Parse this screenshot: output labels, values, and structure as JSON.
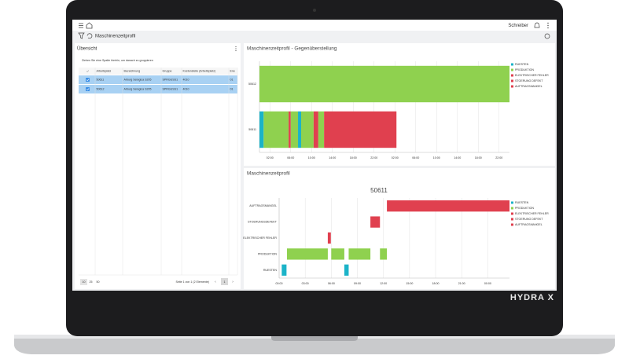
{
  "device": {
    "brand": "HYDRA X"
  },
  "app": {
    "user": "Schreiber",
    "page_title": "Maschinenzeitprofil"
  },
  "overview": {
    "title": "Übersicht",
    "group_hint": "Ziehen Sie eine Spalte hierhin, um danach zu gruppieren",
    "columns": [
      "Arbeitsplatz",
      "Bezeichnung",
      "Gruppe",
      "Kostenstelle (Arbeitsplatz)",
      "Ene"
    ],
    "rows": [
      [
        "50611",
        "Arburg Selogica S205",
        "SPRGUSS1",
        "4010",
        "01"
      ],
      [
        "50612",
        "Arburg Selogica S205",
        "SPRGUSS1",
        "4010",
        "01"
      ]
    ],
    "page_sizes": [
      "10",
      "25",
      "50"
    ],
    "page_info": "Seite 1 von 1 (2 Elemente)",
    "current_page": "1"
  },
  "legend": [
    {
      "name": "RUESTEN",
      "color": "#1bb3c8"
    },
    {
      "name": "PRODUKTION",
      "color": "#8fd14f"
    },
    {
      "name": "ELEKTRISCHER FEHLER",
      "color": "#e0404f"
    },
    {
      "name": "STOERUNG DEFEKT",
      "color": "#e0404f"
    },
    {
      "name": "AUFTRAGSMANGEL",
      "color": "#e0404f"
    }
  ],
  "comparison": {
    "title": "Maschinenzeitprofil - Gegenüberstellung",
    "xlim": [
      0,
      48
    ],
    "xticks": [
      {
        "value": 2,
        "label": "02:00"
      },
      {
        "value": 6,
        "label": "06:00"
      },
      {
        "value": 10,
        "label": "10:00"
      },
      {
        "value": 14,
        "label": "14:00"
      },
      {
        "value": 18,
        "label": "18:00"
      },
      {
        "value": 22,
        "label": "22:00"
      },
      {
        "value": 26,
        "label": "02:00"
      },
      {
        "value": 30,
        "label": "06:00"
      },
      {
        "value": 34,
        "label": "10:00"
      },
      {
        "value": 38,
        "label": "14:00"
      },
      {
        "value": 42,
        "label": "18:00"
      },
      {
        "value": 46,
        "label": "22:00"
      }
    ],
    "rows": [
      {
        "name": "50612",
        "segments": [
          {
            "start": 0,
            "end": 48,
            "color": "#8fd14f"
          }
        ]
      },
      {
        "name": "50611",
        "segments": [
          {
            "start": 0,
            "end": 0.8,
            "color": "#1bb3c8"
          },
          {
            "start": 0.8,
            "end": 5.6,
            "color": "#8fd14f"
          },
          {
            "start": 5.6,
            "end": 6.0,
            "color": "#e0404f"
          },
          {
            "start": 6.0,
            "end": 7.4,
            "color": "#8fd14f"
          },
          {
            "start": 7.4,
            "end": 8.0,
            "color": "#1bb3c8"
          },
          {
            "start": 8.0,
            "end": 10.4,
            "color": "#8fd14f"
          },
          {
            "start": 10.4,
            "end": 11.3,
            "color": "#e0404f"
          },
          {
            "start": 11.3,
            "end": 12.4,
            "color": "#8fd14f"
          },
          {
            "start": 12.4,
            "end": 26.3,
            "color": "#e0404f"
          }
        ]
      }
    ]
  },
  "timeline": {
    "title": "Maschinenzeitprofil",
    "subtitle": "50611",
    "xlim": [
      0,
      26.5
    ],
    "xticks": [
      {
        "value": 0,
        "label": "00:00"
      },
      {
        "value": 3,
        "label": "03:00"
      },
      {
        "value": 6,
        "label": "06:00"
      },
      {
        "value": 9,
        "label": "09:00"
      },
      {
        "value": 12,
        "label": "12:00"
      },
      {
        "value": 15,
        "label": "15:00"
      },
      {
        "value": 18,
        "label": "18:00"
      },
      {
        "value": 21,
        "label": "21:00"
      },
      {
        "value": 24,
        "label": "00:00"
      }
    ],
    "categories": [
      {
        "name": "AUFTRAGSMANGEL",
        "color": "#e0404f",
        "intervals": [
          {
            "start": 12.4,
            "end": 26.5
          }
        ]
      },
      {
        "name": "STOERUNGSDEFEKT",
        "color": "#e0404f",
        "intervals": [
          {
            "start": 10.5,
            "end": 11.6
          }
        ]
      },
      {
        "name": "ELEKTRISCHER FEHLER",
        "color": "#e0404f",
        "intervals": [
          {
            "start": 5.6,
            "end": 5.95
          }
        ]
      },
      {
        "name": "PRODUKTION",
        "color": "#8fd14f",
        "intervals": [
          {
            "start": 0.9,
            "end": 5.6
          },
          {
            "start": 6.0,
            "end": 7.5
          },
          {
            "start": 8.0,
            "end": 10.5
          },
          {
            "start": 11.6,
            "end": 12.4
          }
        ]
      },
      {
        "name": "RUESTEN",
        "color": "#1bb3c8",
        "intervals": [
          {
            "start": 0.3,
            "end": 0.85
          },
          {
            "start": 7.5,
            "end": 8.0
          }
        ]
      }
    ]
  }
}
